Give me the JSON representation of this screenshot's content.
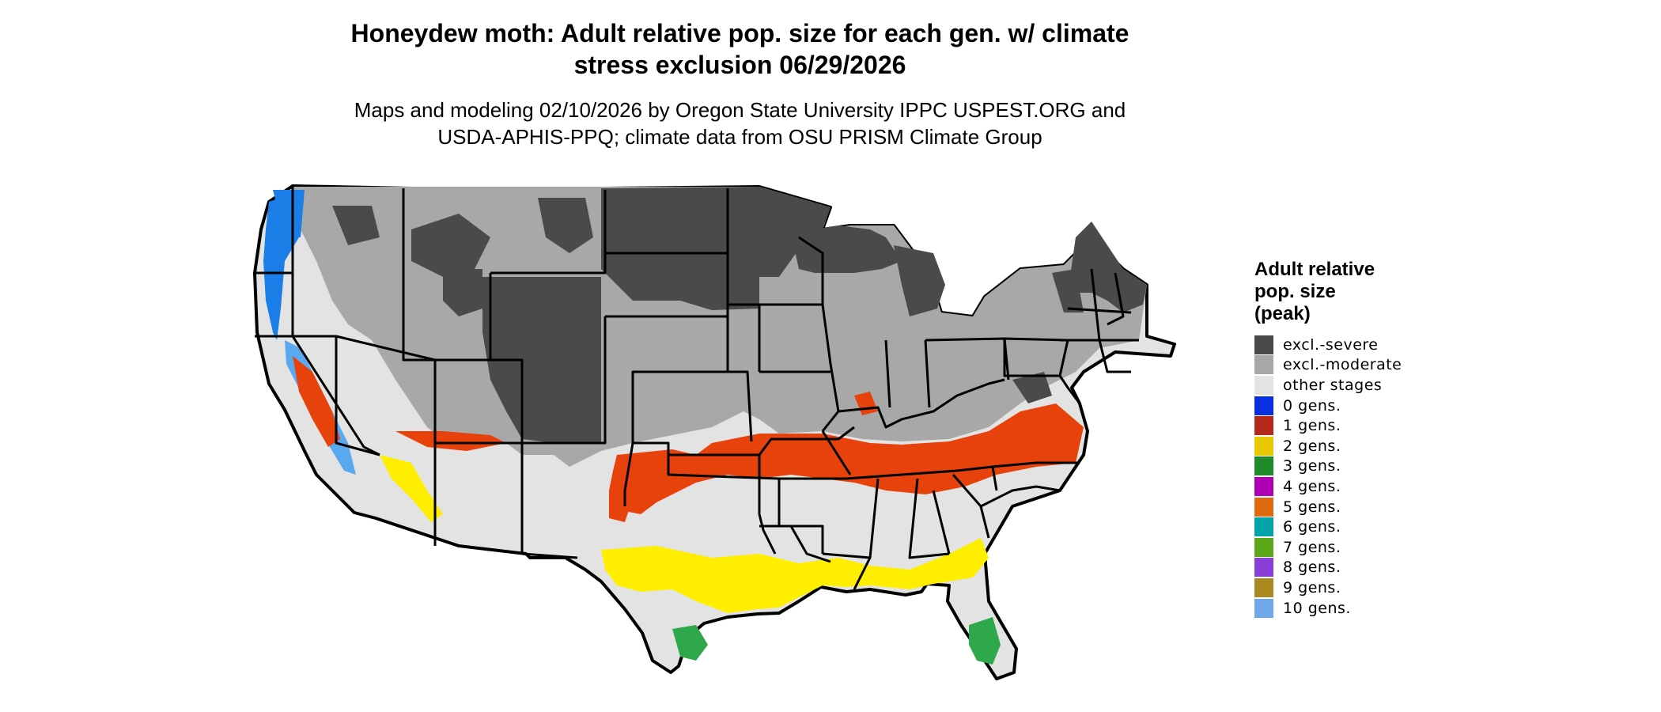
{
  "title_line1": "Honeydew moth: Adult relative pop. size for each gen. w/ climate",
  "title_line2": "stress exclusion 06/29/2026",
  "subtitle_line1": "Maps and modeling 02/10/2026 by Oregon State University IPPC USPEST.ORG and",
  "subtitle_line2": "USDA-APHIS-PPQ; climate data from OSU PRISM Climate Group",
  "legend": {
    "title_lines": [
      "Adult relative",
      "pop. size",
      "(peak)"
    ],
    "items": [
      {
        "label": "excl.-severe",
        "color": "#4a4a4a"
      },
      {
        "label": "excl.-moderate",
        "color": "#a8a8a8"
      },
      {
        "label": "other stages",
        "color": "#e3e3e3"
      },
      {
        "label": "0 gens.",
        "color": "#0a2fe0"
      },
      {
        "label": "1 gens.",
        "color": "#b5291a"
      },
      {
        "label": "2 gens.",
        "color": "#e8c800"
      },
      {
        "label": "3 gens.",
        "color": "#1f8a2a"
      },
      {
        "label": "4 gens.",
        "color": "#b000b5"
      },
      {
        "label": "5 gens.",
        "color": "#e06a10"
      },
      {
        "label": "6 gens.",
        "color": "#00a3a6"
      },
      {
        "label": "7 gens.",
        "color": "#5da81a"
      },
      {
        "label": "8 gens.",
        "color": "#8a3fd8"
      },
      {
        "label": "9 gens.",
        "color": "#a88a20"
      },
      {
        "label": "10 gens.",
        "color": "#6fa8e8"
      }
    ]
  }
}
